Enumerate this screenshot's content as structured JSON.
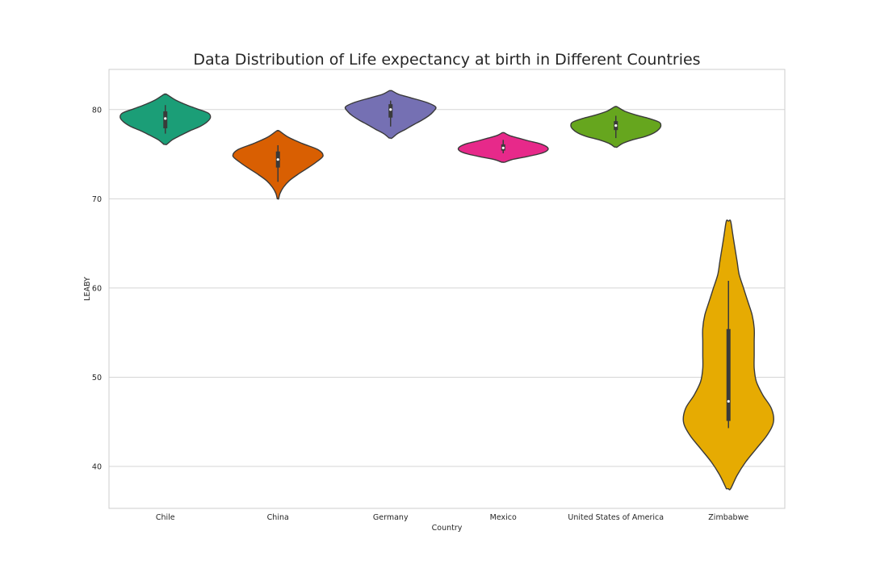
{
  "chart_data": {
    "type": "violin",
    "title": "Data Distribution of Life expectancy at birth in Different Countries",
    "xlabel": "Country",
    "ylabel": "LEABY",
    "ylim": [
      35.3,
      84.5
    ],
    "yticks": [
      40,
      50,
      60,
      70,
      80
    ],
    "grid": "horizontal",
    "legend": "none",
    "categories": [
      "Chile",
      "China",
      "Germany",
      "Mexico",
      "United States of America",
      "Zimbabwe"
    ],
    "series": [
      {
        "category": "Chile",
        "color": "#1b9e77",
        "min": 76.1,
        "max": 81.7,
        "q1": 77.9,
        "median": 79.0,
        "q3": 79.8,
        "whisker_low": 77.3,
        "whisker_high": 80.5,
        "density": [
          [
            76.1,
            0.02
          ],
          [
            76.6,
            0.1
          ],
          [
            77.1,
            0.22
          ],
          [
            77.6,
            0.35
          ],
          [
            78.1,
            0.5
          ],
          [
            78.6,
            0.6
          ],
          [
            79.1,
            0.65
          ],
          [
            79.6,
            0.62
          ],
          [
            80.1,
            0.45
          ],
          [
            80.6,
            0.28
          ],
          [
            81.1,
            0.14
          ],
          [
            81.7,
            0.02
          ]
        ]
      },
      {
        "category": "China",
        "color": "#d95f02",
        "min": 70.0,
        "max": 77.6,
        "q1": 73.5,
        "median": 74.4,
        "q3": 75.3,
        "whisker_low": 71.9,
        "whisker_high": 76.0,
        "density": [
          [
            70.0,
            0.01
          ],
          [
            70.6,
            0.03
          ],
          [
            71.3,
            0.08
          ],
          [
            72.0,
            0.16
          ],
          [
            72.7,
            0.28
          ],
          [
            73.4,
            0.42
          ],
          [
            74.1,
            0.55
          ],
          [
            74.8,
            0.65
          ],
          [
            75.5,
            0.58
          ],
          [
            76.2,
            0.35
          ],
          [
            76.9,
            0.15
          ],
          [
            77.6,
            0.02
          ]
        ]
      },
      {
        "category": "Germany",
        "color": "#7570b3",
        "min": 76.8,
        "max": 82.1,
        "q1": 79.1,
        "median": 80.0,
        "q3": 80.6,
        "whisker_low": 78.1,
        "whisker_high": 81.0,
        "density": [
          [
            76.8,
            0.02
          ],
          [
            77.3,
            0.1
          ],
          [
            77.8,
            0.22
          ],
          [
            78.3,
            0.33
          ],
          [
            78.8,
            0.45
          ],
          [
            79.3,
            0.55
          ],
          [
            79.8,
            0.62
          ],
          [
            80.3,
            0.65
          ],
          [
            80.8,
            0.52
          ],
          [
            81.3,
            0.3
          ],
          [
            81.7,
            0.12
          ],
          [
            82.1,
            0.02
          ]
        ]
      },
      {
        "category": "Mexico",
        "color": "#e7298a",
        "min": 74.1,
        "max": 77.4,
        "q1": 75.4,
        "median": 75.7,
        "q3": 76.1,
        "whisker_low": 75.1,
        "whisker_high": 76.6,
        "density": [
          [
            74.1,
            0.03
          ],
          [
            74.4,
            0.18
          ],
          [
            74.7,
            0.45
          ],
          [
            75.0,
            0.7
          ],
          [
            75.3,
            0.85
          ],
          [
            75.6,
            0.9
          ],
          [
            75.9,
            0.85
          ],
          [
            76.2,
            0.72
          ],
          [
            76.5,
            0.5
          ],
          [
            76.8,
            0.3
          ],
          [
            77.1,
            0.12
          ],
          [
            77.4,
            0.02
          ]
        ]
      },
      {
        "category": "United States of America",
        "color": "#66a61e",
        "min": 75.8,
        "max": 80.3,
        "q1": 77.7,
        "median": 78.2,
        "q3": 78.7,
        "whisker_low": 76.8,
        "whisker_high": 79.3,
        "density": [
          [
            75.8,
            0.02
          ],
          [
            76.2,
            0.1
          ],
          [
            76.6,
            0.25
          ],
          [
            77.0,
            0.45
          ],
          [
            77.4,
            0.58
          ],
          [
            77.8,
            0.65
          ],
          [
            78.2,
            0.68
          ],
          [
            78.6,
            0.65
          ],
          [
            79.0,
            0.5
          ],
          [
            79.4,
            0.3
          ],
          [
            79.8,
            0.14
          ],
          [
            80.3,
            0.02
          ]
        ]
      },
      {
        "category": "Zimbabwe",
        "color": "#e6ab02",
        "min": 37.5,
        "max": 67.5,
        "q1": 45.1,
        "median": 47.3,
        "q3": 55.4,
        "whisker_low": 44.3,
        "whisker_high": 60.8,
        "density": [
          [
            37.5,
            0.01
          ],
          [
            39.0,
            0.04
          ],
          [
            40.5,
            0.08
          ],
          [
            42.0,
            0.13
          ],
          [
            43.5,
            0.18
          ],
          [
            45.0,
            0.21
          ],
          [
            46.5,
            0.2
          ],
          [
            48.0,
            0.16
          ],
          [
            49.5,
            0.13
          ],
          [
            51.0,
            0.12
          ],
          [
            52.5,
            0.12
          ],
          [
            54.0,
            0.12
          ],
          [
            55.5,
            0.12
          ],
          [
            57.0,
            0.11
          ],
          [
            58.5,
            0.09
          ],
          [
            60.0,
            0.07
          ],
          [
            61.5,
            0.05
          ],
          [
            63.0,
            0.04
          ],
          [
            64.5,
            0.03
          ],
          [
            66.0,
            0.02
          ],
          [
            67.5,
            0.01
          ]
        ]
      }
    ]
  }
}
